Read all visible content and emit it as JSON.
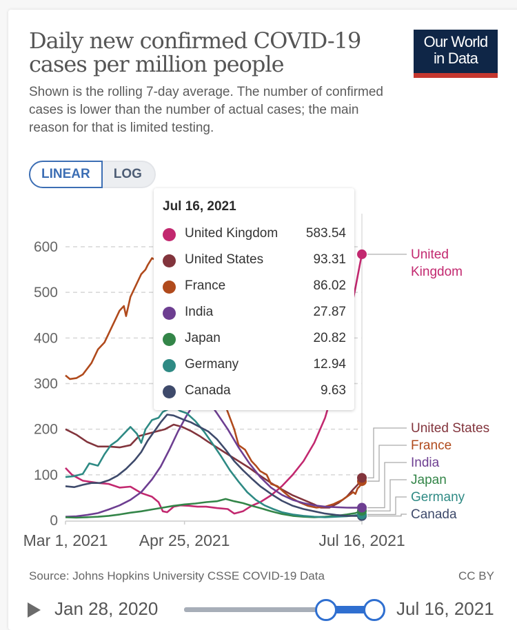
{
  "header": {
    "title": "Daily new confirmed COVID-19 cases per million people",
    "subtitle": "Shown is the rolling 7-day average. The number of confirmed cases is lower than the number of actual cases; the main reason for that is limited testing.",
    "logo_line1": "Our World",
    "logo_line2": "in Data"
  },
  "scale_toggle": {
    "linear": "LINEAR",
    "log": "LOG",
    "selected": "LINEAR"
  },
  "tooltip": {
    "date": "Jul 16, 2021",
    "rows": [
      {
        "name": "United Kingdom",
        "value": "583.54",
        "color": "#c2286f"
      },
      {
        "name": "United States",
        "value": "93.31",
        "color": "#82343c"
      },
      {
        "name": "France",
        "value": "86.02",
        "color": "#b04a1c"
      },
      {
        "name": "India",
        "value": "27.87",
        "color": "#6d3e91"
      },
      {
        "name": "Japan",
        "value": "20.82",
        "color": "#338548"
      },
      {
        "name": "Germany",
        "value": "12.94",
        "color": "#2e8a84"
      },
      {
        "name": "Canada",
        "value": "9.63",
        "color": "#3e4a6b"
      }
    ]
  },
  "footer": {
    "source": "Source: Johns Hopkins University CSSE COVID-19 Data",
    "license": "CC BY"
  },
  "timeline": {
    "start_label": "Jan 28, 2020",
    "end_label": "Jul 16, 2021",
    "selection_start": "Mar 1, 2021",
    "selection_end": "Jul 16, 2021"
  },
  "chart_data": {
    "type": "line",
    "title": "Daily new confirmed COVID-19 cases per million people",
    "xlabel": "",
    "ylabel": "",
    "x_unit": "days since Mar 1, 2021",
    "xlim": [
      0,
      137
    ],
    "ylim": [
      0,
      600
    ],
    "yticks": [
      0,
      100,
      200,
      300,
      400,
      500,
      600
    ],
    "xticks": [
      {
        "day": 0,
        "label": "Mar 1, 2021"
      },
      {
        "day": 55,
        "label": "Apr 25, 2021"
      },
      {
        "day": 137,
        "label": "Jul 16, 2021"
      }
    ],
    "grid": true,
    "hover_day": 137,
    "series": [
      {
        "name": "United Kingdom",
        "color": "#c2286f",
        "label": "United Kingdom",
        "end_value": 583.54,
        "points": [
          [
            0,
            115
          ],
          [
            3,
            100
          ],
          [
            8,
            87
          ],
          [
            15,
            82
          ],
          [
            20,
            80
          ],
          [
            25,
            72
          ],
          [
            30,
            74
          ],
          [
            35,
            60
          ],
          [
            40,
            52
          ],
          [
            43,
            40
          ],
          [
            45,
            20
          ],
          [
            47,
            18
          ],
          [
            50,
            30
          ],
          [
            53,
            33
          ],
          [
            57,
            32
          ],
          [
            61,
            30
          ],
          [
            65,
            30
          ],
          [
            70,
            27
          ],
          [
            75,
            25
          ],
          [
            78,
            15
          ],
          [
            82,
            20
          ],
          [
            86,
            32
          ],
          [
            90,
            40
          ],
          [
            95,
            55
          ],
          [
            100,
            75
          ],
          [
            105,
            100
          ],
          [
            110,
            130
          ],
          [
            115,
            170
          ],
          [
            120,
            225
          ],
          [
            124,
            290
          ],
          [
            128,
            370
          ],
          [
            131,
            440
          ],
          [
            134,
            510
          ],
          [
            136,
            560
          ],
          [
            137,
            583.54
          ]
        ]
      },
      {
        "name": "United States",
        "color": "#82343c",
        "label": "United States",
        "end_value": 93.31,
        "points": [
          [
            0,
            200
          ],
          [
            5,
            188
          ],
          [
            10,
            172
          ],
          [
            15,
            162
          ],
          [
            20,
            162
          ],
          [
            25,
            160
          ],
          [
            30,
            165
          ],
          [
            34,
            185
          ],
          [
            38,
            190
          ],
          [
            42,
            195
          ],
          [
            46,
            200
          ],
          [
            50,
            210
          ],
          [
            54,
            205
          ],
          [
            58,
            196
          ],
          [
            62,
            185
          ],
          [
            66,
            172
          ],
          [
            70,
            160
          ],
          [
            75,
            145
          ],
          [
            80,
            130
          ],
          [
            85,
            115
          ],
          [
            90,
            98
          ],
          [
            95,
            82
          ],
          [
            100,
            68
          ],
          [
            105,
            55
          ],
          [
            110,
            45
          ],
          [
            115,
            35
          ],
          [
            118,
            28
          ],
          [
            122,
            28
          ],
          [
            126,
            38
          ],
          [
            130,
            52
          ],
          [
            133,
            68
          ],
          [
            135,
            78
          ],
          [
            137,
            93.31
          ]
        ]
      },
      {
        "name": "France",
        "color": "#b04a1c",
        "label": "France",
        "end_value": 86.02,
        "points": [
          [
            0,
            318
          ],
          [
            2,
            310
          ],
          [
            5,
            312
          ],
          [
            8,
            320
          ],
          [
            12,
            345
          ],
          [
            15,
            375
          ],
          [
            18,
            390
          ],
          [
            20,
            410
          ],
          [
            23,
            440
          ],
          [
            25,
            460
          ],
          [
            27,
            470
          ],
          [
            28,
            448
          ],
          [
            30,
            490
          ],
          [
            33,
            520
          ],
          [
            35,
            540
          ],
          [
            37,
            550
          ],
          [
            38,
            560
          ],
          [
            40,
            575
          ],
          [
            42,
            570
          ],
          [
            43,
            490
          ],
          [
            44,
            585
          ],
          [
            45,
            555
          ],
          [
            46,
            420
          ],
          [
            47,
            510
          ],
          [
            48,
            420
          ],
          [
            50,
            540
          ],
          [
            52,
            520
          ],
          [
            55,
            480
          ],
          [
            58,
            430
          ],
          [
            62,
            380
          ],
          [
            66,
            330
          ],
          [
            70,
            290
          ],
          [
            74,
            250
          ],
          [
            78,
            200
          ],
          [
            80,
            165
          ],
          [
            83,
            155
          ],
          [
            86,
            130
          ],
          [
            88,
            120
          ],
          [
            90,
            108
          ],
          [
            93,
            100
          ],
          [
            95,
            80
          ],
          [
            98,
            75
          ],
          [
            101,
            62
          ],
          [
            104,
            50
          ],
          [
            108,
            40
          ],
          [
            112,
            32
          ],
          [
            116,
            28
          ],
          [
            120,
            30
          ],
          [
            124,
            36
          ],
          [
            128,
            45
          ],
          [
            131,
            55
          ],
          [
            133,
            62
          ],
          [
            134,
            58
          ],
          [
            135,
            70
          ],
          [
            136,
            75
          ],
          [
            137,
            86.02
          ]
        ]
      },
      {
        "name": "India",
        "color": "#6d3e91",
        "label": "India",
        "end_value": 27.87,
        "points": [
          [
            0,
            8
          ],
          [
            5,
            9
          ],
          [
            10,
            12
          ],
          [
            15,
            16
          ],
          [
            20,
            24
          ],
          [
            25,
            33
          ],
          [
            30,
            45
          ],
          [
            35,
            62
          ],
          [
            40,
            90
          ],
          [
            44,
            118
          ],
          [
            48,
            155
          ],
          [
            52,
            195
          ],
          [
            56,
            230
          ],
          [
            60,
            260
          ],
          [
            63,
            272
          ],
          [
            66,
            262
          ],
          [
            70,
            235
          ],
          [
            75,
            200
          ],
          [
            80,
            160
          ],
          [
            85,
            125
          ],
          [
            90,
            95
          ],
          [
            95,
            72
          ],
          [
            100,
            56
          ],
          [
            105,
            45
          ],
          [
            110,
            38
          ],
          [
            115,
            33
          ],
          [
            120,
            30
          ],
          [
            125,
            29
          ],
          [
            130,
            28
          ],
          [
            137,
            27.87
          ]
        ]
      },
      {
        "name": "Japan",
        "color": "#338548",
        "label": "Japan",
        "end_value": 20.82,
        "points": [
          [
            0,
            7
          ],
          [
            5,
            6
          ],
          [
            10,
            7
          ],
          [
            15,
            8
          ],
          [
            20,
            10
          ],
          [
            25,
            13
          ],
          [
            30,
            17
          ],
          [
            35,
            20
          ],
          [
            40,
            24
          ],
          [
            45,
            28
          ],
          [
            50,
            32
          ],
          [
            55,
            35
          ],
          [
            60,
            37
          ],
          [
            65,
            40
          ],
          [
            70,
            42
          ],
          [
            74,
            47
          ],
          [
            78,
            42
          ],
          [
            82,
            38
          ],
          [
            86,
            32
          ],
          [
            90,
            27
          ],
          [
            95,
            20
          ],
          [
            100,
            14
          ],
          [
            105,
            10
          ],
          [
            110,
            8
          ],
          [
            115,
            7
          ],
          [
            120,
            8
          ],
          [
            125,
            10
          ],
          [
            130,
            13
          ],
          [
            134,
            16
          ],
          [
            137,
            20.82
          ]
        ]
      },
      {
        "name": "Germany",
        "color": "#2e8a84",
        "label": "Germany",
        "end_value": 12.94,
        "points": [
          [
            0,
            95
          ],
          [
            4,
            97
          ],
          [
            8,
            102
          ],
          [
            11,
            125
          ],
          [
            15,
            120
          ],
          [
            18,
            145
          ],
          [
            21,
            165
          ],
          [
            24,
            175
          ],
          [
            27,
            190
          ],
          [
            30,
            205
          ],
          [
            33,
            190
          ],
          [
            35,
            170
          ],
          [
            37,
            200
          ],
          [
            40,
            220
          ],
          [
            43,
            225
          ],
          [
            45,
            238
          ],
          [
            48,
            245
          ],
          [
            50,
            250
          ],
          [
            53,
            240
          ],
          [
            56,
            235
          ],
          [
            60,
            218
          ],
          [
            64,
            195
          ],
          [
            68,
            168
          ],
          [
            72,
            140
          ],
          [
            76,
            110
          ],
          [
            80,
            85
          ],
          [
            84,
            62
          ],
          [
            88,
            45
          ],
          [
            92,
            33
          ],
          [
            96,
            25
          ],
          [
            100,
            18
          ],
          [
            105,
            13
          ],
          [
            110,
            10
          ],
          [
            115,
            8
          ],
          [
            120,
            7
          ],
          [
            125,
            8
          ],
          [
            130,
            9
          ],
          [
            137,
            12.94
          ]
        ]
      },
      {
        "name": "Canada",
        "color": "#3e4a6b",
        "label": "Canada",
        "end_value": 9.63,
        "points": [
          [
            0,
            75
          ],
          [
            4,
            73
          ],
          [
            8,
            78
          ],
          [
            12,
            82
          ],
          [
            16,
            82
          ],
          [
            20,
            88
          ],
          [
            24,
            98
          ],
          [
            28,
            113
          ],
          [
            32,
            132
          ],
          [
            35,
            150
          ],
          [
            38,
            175
          ],
          [
            41,
            195
          ],
          [
            44,
            215
          ],
          [
            47,
            232
          ],
          [
            50,
            230
          ],
          [
            54,
            222
          ],
          [
            58,
            215
          ],
          [
            62,
            205
          ],
          [
            66,
            195
          ],
          [
            70,
            178
          ],
          [
            74,
            155
          ],
          [
            78,
            130
          ],
          [
            82,
            110
          ],
          [
            86,
            92
          ],
          [
            90,
            75
          ],
          [
            95,
            58
          ],
          [
            100,
            43
          ],
          [
            105,
            32
          ],
          [
            110,
            25
          ],
          [
            115,
            20
          ],
          [
            120,
            15
          ],
          [
            125,
            12
          ],
          [
            130,
            10
          ],
          [
            137,
            9.63
          ]
        ]
      }
    ]
  }
}
